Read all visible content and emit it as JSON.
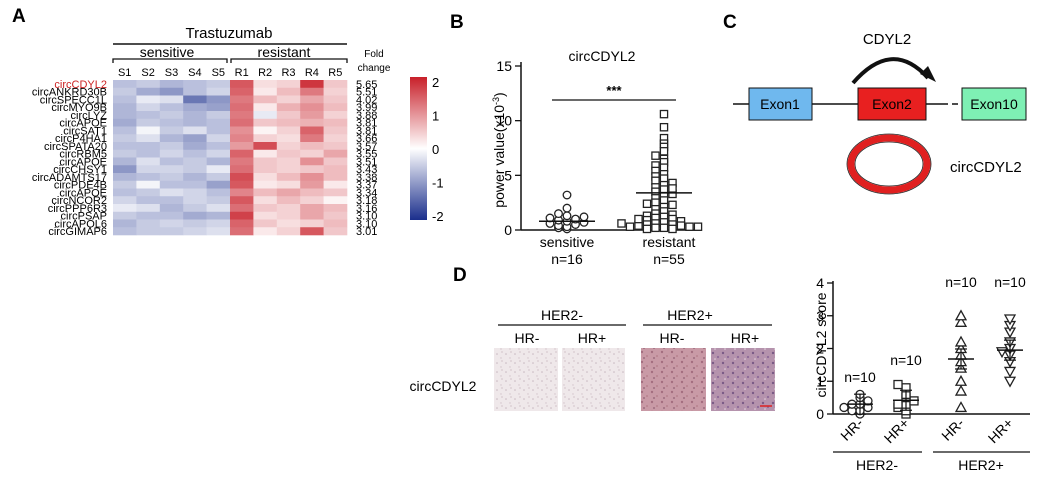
{
  "panels": {
    "a": {
      "letter": "A",
      "treatment": "Trastuzumab",
      "group_sensitive": "sensitive",
      "group_resistant": "resistant",
      "fold_label_1": "Fold",
      "fold_label_2": "change",
      "samples": [
        "S1",
        "S2",
        "S3",
        "S4",
        "S5",
        "R1",
        "R2",
        "R3",
        "R4",
        "R5"
      ],
      "rows": [
        {
          "name": "circCDYL2",
          "fold": "5.65",
          "highlight": true
        },
        {
          "name": "circANKRD30B",
          "fold": "5.51"
        },
        {
          "name": "circSPECC1L",
          "fold": "4.02"
        },
        {
          "name": "circMYO9B",
          "fold": "3.99"
        },
        {
          "name": "circLYZ",
          "fold": "3.88"
        },
        {
          "name": "circAPOE",
          "fold": "3.81"
        },
        {
          "name": "circSAT1",
          "fold": "3.81"
        },
        {
          "name": "circP4HA1",
          "fold": "3.66"
        },
        {
          "name": "circSPATA20",
          "fold": "3.57"
        },
        {
          "name": "circRBM5",
          "fold": "3.55"
        },
        {
          "name": "circAPOE",
          "fold": "3.51"
        },
        {
          "name": "circCHSY1",
          "fold": "3.43"
        },
        {
          "name": "circADAMTS17",
          "fold": "3.38"
        },
        {
          "name": "circPDE4B",
          "fold": "3.37"
        },
        {
          "name": "circAPOE",
          "fold": "3.34"
        },
        {
          "name": "circNCOR2",
          "fold": "3.18"
        },
        {
          "name": "circPPP6R3",
          "fold": "3.16"
        },
        {
          "name": "circPSAP",
          "fold": "3.10"
        },
        {
          "name": "circAPOL6",
          "fold": "3.10"
        },
        {
          "name": "circGIMAP6",
          "fold": "3.01"
        }
      ],
      "colorbar": {
        "ticks": [
          "2",
          "1",
          "0",
          "-1",
          "-2"
        ],
        "min": -2,
        "max": 2,
        "low_color": "#1a2e8c",
        "mid_color": "#ffffff",
        "high_color": "#c8202a"
      },
      "highlight_color": "#cc2222"
    },
    "b": {
      "letter": "B",
      "title": "circCDYL2",
      "ylabel": "power value(x10",
      "ylabel_exp": "-3",
      "ylabel_close": ")",
      "significance": "***",
      "groups": [
        {
          "label": "sensitive",
          "n": "n=16"
        },
        {
          "label": "resistant",
          "n": "n=55"
        }
      ]
    },
    "c": {
      "letter": "C",
      "gene": "CDYL2",
      "exon1": "Exon1",
      "exon2": "Exon2",
      "exon10": "Exon10",
      "circ_label": "circCDYL2",
      "exon1_color": "#6fb8ee",
      "exon2_color": "#e82020",
      "exon10_color": "#7ef0b4"
    },
    "d": {
      "letter": "D",
      "her2neg": "HER2-",
      "her2pos": "HER2+",
      "hr_neg": "HR-",
      "hr_pos": "HR+",
      "row_label": "circCDYL2",
      "ylabel": "circCDYL2 score",
      "n_labels": [
        "n=10",
        "n=10",
        "n=10",
        "n=10"
      ]
    }
  },
  "chart_data": [
    {
      "type": "heatmap",
      "title": "Trastuzumab",
      "colorbar_range": [
        -2,
        2
      ],
      "columns": [
        "S1",
        "S2",
        "S3",
        "S4",
        "S5",
        "R1",
        "R2",
        "R3",
        "R4",
        "R5"
      ],
      "rows": [
        "circCDYL2",
        "circANKRD30B",
        "circSPECC1L",
        "circMYO9B",
        "circLYZ",
        "circAPOE",
        "circSAT1",
        "circP4HA1",
        "circSPATA20",
        "circRBM5",
        "circAPOE",
        "circCHSY1",
        "circADAMTS17",
        "circPDE4B",
        "circAPOE",
        "circNCOR2",
        "circPPP6R3",
        "circPSAP",
        "circAPOL6",
        "circGIMAP6"
      ],
      "values": [
        [
          -0.6,
          -0.5,
          -0.7,
          -0.6,
          -0.5,
          1.5,
          0.3,
          0.4,
          1.8,
          0.5
        ],
        [
          -0.5,
          -0.8,
          -1.0,
          -0.6,
          -0.4,
          1.4,
          0.2,
          0.6,
          1.2,
          0.4
        ],
        [
          -0.6,
          -0.2,
          -0.3,
          -1.3,
          -1.0,
          1.2,
          0.6,
          0.4,
          0.8,
          0.5
        ],
        [
          -0.7,
          -0.4,
          -0.6,
          -0.8,
          -0.9,
          1.3,
          0.2,
          0.7,
          1.0,
          0.6
        ],
        [
          -0.7,
          -0.6,
          -0.5,
          -0.7,
          -0.5,
          1.2,
          -0.2,
          0.5,
          0.9,
          0.4
        ],
        [
          -0.8,
          -0.5,
          -0.6,
          -0.7,
          -0.6,
          1.3,
          0.5,
          0.6,
          0.7,
          0.6
        ],
        [
          -0.6,
          -0.1,
          -0.5,
          -0.3,
          -0.6,
          1.0,
          0.1,
          0.4,
          1.4,
          0.5
        ],
        [
          -0.5,
          -0.3,
          -0.7,
          -0.9,
          -0.4,
          1.1,
          0.4,
          0.3,
          1.2,
          0.4
        ],
        [
          -0.6,
          -0.6,
          -0.5,
          -0.8,
          -0.6,
          0.9,
          1.6,
          0.4,
          0.6,
          0.5
        ],
        [
          -0.5,
          -0.6,
          -0.4,
          -0.6,
          -0.4,
          1.4,
          0.2,
          0.5,
          0.4,
          0.8
        ],
        [
          -0.7,
          -0.3,
          -0.6,
          -0.5,
          -0.7,
          1.2,
          0.5,
          0.4,
          1.0,
          0.5
        ],
        [
          -1.0,
          -0.4,
          -0.4,
          -0.5,
          -0.2,
          1.3,
          0.5,
          0.4,
          0.5,
          0.6
        ],
        [
          -0.7,
          -0.6,
          -0.5,
          -0.7,
          -0.5,
          1.6,
          0.3,
          0.6,
          1.0,
          0.6
        ],
        [
          -0.5,
          -0.1,
          -0.6,
          -0.6,
          -0.9,
          1.5,
          0.2,
          0.3,
          0.9,
          0.2
        ],
        [
          -0.6,
          -0.5,
          -0.3,
          -0.4,
          -0.6,
          1.1,
          0.6,
          0.8,
          0.6,
          0.5
        ],
        [
          -0.4,
          -0.6,
          -0.6,
          -0.4,
          -0.5,
          1.5,
          0.3,
          0.6,
          0.4,
          0.1
        ],
        [
          -0.2,
          -0.3,
          -0.7,
          -0.5,
          -0.3,
          1.3,
          0.5,
          0.4,
          0.8,
          0.6
        ],
        [
          -0.5,
          -0.6,
          -0.6,
          -0.8,
          -0.7,
          1.7,
          0.3,
          0.4,
          0.8,
          0.5
        ],
        [
          -0.7,
          -0.5,
          -0.4,
          -0.5,
          -0.4,
          1.4,
          0.5,
          0.3,
          0.4,
          0.6
        ],
        [
          -0.6,
          -0.5,
          -0.5,
          -0.4,
          -0.3,
          1.3,
          0.2,
          0.4,
          1.5,
          0.5
        ]
      ]
    },
    {
      "type": "scatter",
      "title": "circCDYL2",
      "ylim": [
        0,
        15
      ],
      "yticks": [
        "0",
        "5",
        "10",
        "15"
      ],
      "categories": [
        "sensitive",
        "resistant"
      ],
      "means": [
        0.8,
        3.4
      ],
      "series": [
        {
          "name": "sensitive",
          "marker": "circle",
          "values": [
            0.1,
            0.2,
            0.3,
            0.4,
            0.5,
            0.6,
            0.7,
            0.8,
            0.9,
            1.0,
            1.1,
            1.2,
            1.3,
            1.5,
            2.0,
            3.2
          ]
        },
        {
          "name": "resistant",
          "marker": "square",
          "values": [
            10.6,
            9.4,
            8.4,
            7.9,
            7.6,
            7.2,
            6.8,
            6.5,
            6.2,
            5.9,
            5.7,
            5.4,
            5.1,
            4.9,
            4.7,
            4.5,
            4.3,
            4.1,
            3.9,
            3.7,
            3.5,
            3.3,
            3.1,
            2.9,
            2.7,
            2.5,
            2.3,
            2.1,
            1.9,
            1.7,
            1.5,
            1.4,
            1.3,
            1.2,
            1.1,
            1.0,
            0.9,
            0.8,
            0.7,
            0.6,
            0.5,
            0.5,
            0.4,
            0.4,
            0.3,
            0.3,
            0.2,
            0.2,
            0.1,
            0.1,
            0.3,
            0.6,
            1.0,
            2.4,
            3.8
          ]
        }
      ]
    },
    {
      "type": "scatter",
      "ylabel": "circCDYL2 score",
      "ylim": [
        0,
        4
      ],
      "yticks": [
        "0",
        "1",
        "2",
        "3",
        "4"
      ],
      "categories": [
        "HR-",
        "HR+",
        "HR-",
        "HR+"
      ],
      "groups": [
        "HER2-",
        "HER2-",
        "HER2+",
        "HER2+"
      ],
      "means": [
        0.3,
        0.42,
        1.68,
        1.95
      ],
      "series": [
        {
          "name": "HER2- HR-",
          "marker": "circle",
          "values": [
            0.0,
            0.1,
            0.1,
            0.2,
            0.2,
            0.3,
            0.3,
            0.4,
            0.5,
            0.6
          ]
        },
        {
          "name": "HER2- HR+",
          "marker": "square",
          "values": [
            0.0,
            0.1,
            0.2,
            0.3,
            0.3,
            0.4,
            0.5,
            0.6,
            0.8,
            0.9
          ]
        },
        {
          "name": "HER2+ HR-",
          "marker": "triangle-up",
          "values": [
            0.2,
            0.7,
            1.0,
            1.4,
            1.6,
            1.8,
            2.0,
            2.2,
            2.8,
            3.0
          ]
        },
        {
          "name": "HER2+ HR+",
          "marker": "triangle-down",
          "values": [
            1.0,
            1.3,
            1.6,
            1.8,
            1.9,
            2.0,
            2.2,
            2.5,
            2.7,
            2.9
          ]
        }
      ]
    }
  ]
}
